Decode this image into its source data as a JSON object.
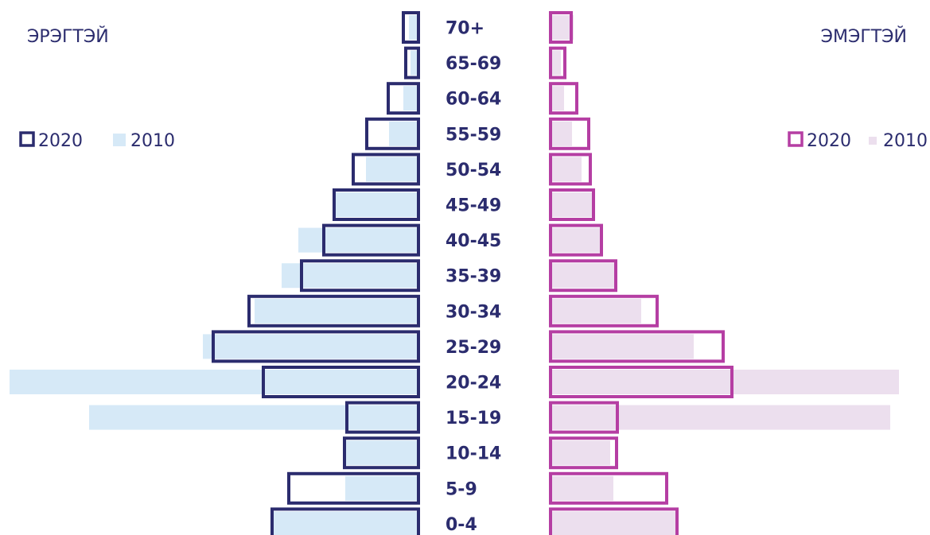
{
  "chart_data": {
    "type": "bar",
    "subtype": "population-pyramid",
    "categories": [
      "70+",
      "65-69",
      "60-64",
      "55-59",
      "50-54",
      "45-49",
      "40-45",
      "35-39",
      "30-34",
      "25-29",
      "20-24",
      "15-19",
      "10-14",
      "5-9",
      "0-4"
    ],
    "male": {
      "label": "ЭРЭГТЭЙ",
      "series": [
        {
          "name": "2020",
          "values": [
            19,
            16,
            38,
            65,
            82,
            106,
            119,
            147,
            213,
            258,
            195,
            90,
            93,
            163,
            184
          ]
        },
        {
          "name": "2010",
          "values": [
            12,
            10,
            19,
            37,
            66,
            106,
            151,
            172,
            206,
            271,
            514,
            414,
            92,
            92,
            184
          ]
        }
      ]
    },
    "female": {
      "label": "ЭМЭГТЭЙ",
      "series": [
        {
          "name": "2020",
          "values": [
            26,
            18,
            33,
            48,
            50,
            54,
            64,
            82,
            134,
            217,
            228,
            84,
            83,
            146,
            159
          ]
        },
        {
          "name": "2010",
          "values": [
            29,
            13,
            17,
            27,
            39,
            54,
            62,
            80,
            114,
            180,
            438,
            427,
            75,
            79,
            159
          ]
        }
      ]
    },
    "legend": {
      "male": [
        {
          "label": "2020"
        },
        {
          "label": "2010"
        }
      ],
      "female": [
        {
          "label": "2020"
        },
        {
          "label": "2010"
        }
      ]
    }
  },
  "colors": {
    "male_2020": "#2b2c6e",
    "male_2010": "#d6e9f7",
    "female_2020": "#b53ea3",
    "female_2010": "#ecdfee",
    "text": "#2b2c6e"
  }
}
